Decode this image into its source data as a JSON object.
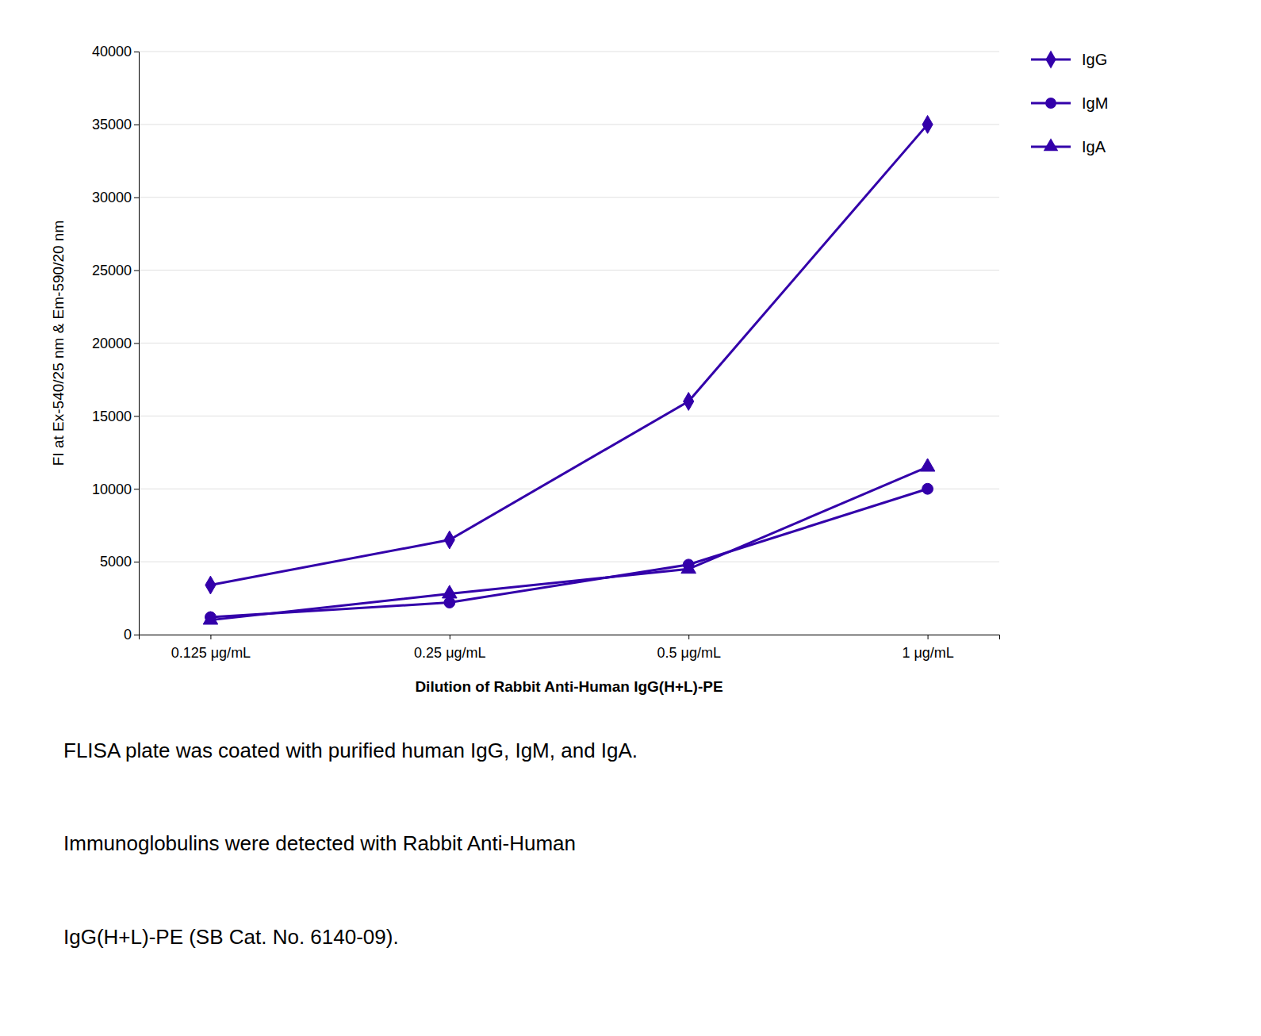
{
  "chart_data": {
    "type": "line",
    "categories": [
      "0.125 μg/mL",
      "0.25 μg/mL",
      "0.5 μg/mL",
      "1 μg/mL"
    ],
    "series": [
      {
        "name": "IgG",
        "color": "#3300aa",
        "marker": "diamond",
        "values": [
          3400,
          6500,
          16000,
          35000
        ]
      },
      {
        "name": "IgM",
        "color": "#3300aa",
        "marker": "circle",
        "values": [
          1200,
          2200,
          4800,
          10000
        ]
      },
      {
        "name": "IgA",
        "color": "#3300aa",
        "marker": "triangle",
        "values": [
          1000,
          2800,
          4500,
          11500
        ]
      }
    ],
    "y_label": "FI at Ex-540/25 nm & Em-590/20 nm",
    "x_label": "Dilution of Rabbit Anti-Human IgG(H+L)-PE",
    "ylim": [
      0,
      40000
    ],
    "yticks": [
      0,
      5000,
      10000,
      15000,
      20000,
      25000,
      30000,
      35000,
      40000
    ],
    "grid": true,
    "legend": "right",
    "annotations": [
      "FLISA plate was coated with purified human IgG, IgM, and IgA.",
      "Immunoglobulins were detected with Rabbit Anti-Human",
      "IgG(H+L)-PE (SB Cat. No. 6140-09)."
    ]
  }
}
